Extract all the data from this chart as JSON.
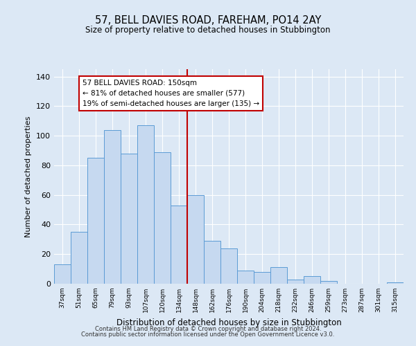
{
  "title": "57, BELL DAVIES ROAD, FAREHAM, PO14 2AY",
  "subtitle": "Size of property relative to detached houses in Stubbington",
  "xlabel": "Distribution of detached houses by size in Stubbington",
  "ylabel": "Number of detached properties",
  "bin_labels": [
    "37sqm",
    "51sqm",
    "65sqm",
    "79sqm",
    "93sqm",
    "107sqm",
    "120sqm",
    "134sqm",
    "148sqm",
    "162sqm",
    "176sqm",
    "190sqm",
    "204sqm",
    "218sqm",
    "232sqm",
    "246sqm",
    "259sqm",
    "273sqm",
    "287sqm",
    "301sqm",
    "315sqm"
  ],
  "bar_heights": [
    13,
    35,
    85,
    104,
    88,
    107,
    89,
    53,
    60,
    29,
    24,
    9,
    8,
    11,
    3,
    5,
    2,
    0,
    0,
    0,
    1
  ],
  "bar_color": "#c6d9f0",
  "bar_edge_color": "#5b9bd5",
  "vline_x_index": 8,
  "vline_color": "#c00000",
  "annotation_line1": "57 BELL DAVIES ROAD: 150sqm",
  "annotation_line2": "← 81% of detached houses are smaller (577)",
  "annotation_line3": "19% of semi-detached houses are larger (135) →",
  "annotation_box_color": "#ffffff",
  "annotation_box_edge_color": "#c00000",
  "ylim": [
    0,
    145
  ],
  "yticks": [
    0,
    20,
    40,
    60,
    80,
    100,
    120,
    140
  ],
  "background_color": "#dce8f5",
  "footer_line1": "Contains HM Land Registry data © Crown copyright and database right 2024.",
  "footer_line2": "Contains public sector information licensed under the Open Government Licence v3.0."
}
